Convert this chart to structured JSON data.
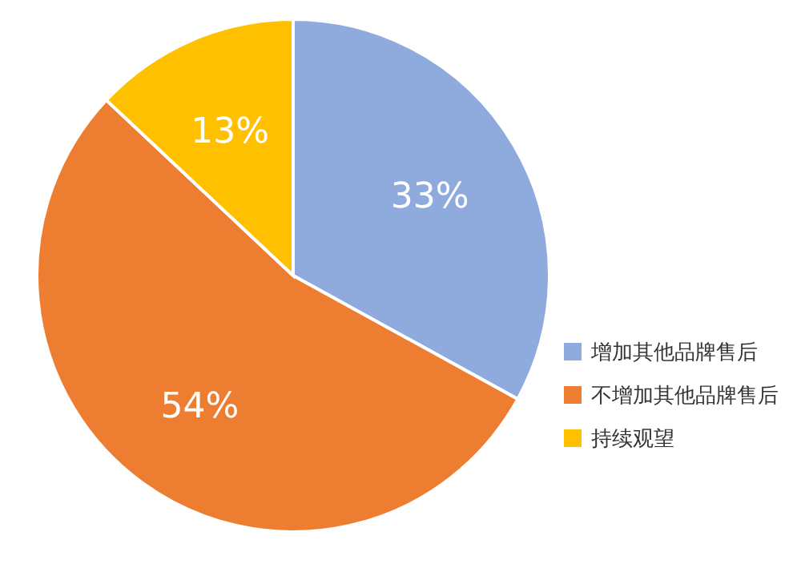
{
  "chart_data": {
    "type": "pie",
    "categories": [
      "增加其他品牌售后",
      "不增加其他品牌售后",
      "持续观望"
    ],
    "values": [
      33,
      54,
      13
    ],
    "colors": [
      "#8faadc",
      "#ed7d31",
      "#ffc000"
    ],
    "value_labels": [
      "33%",
      "54%",
      "13%"
    ],
    "legend": "bottom right"
  }
}
